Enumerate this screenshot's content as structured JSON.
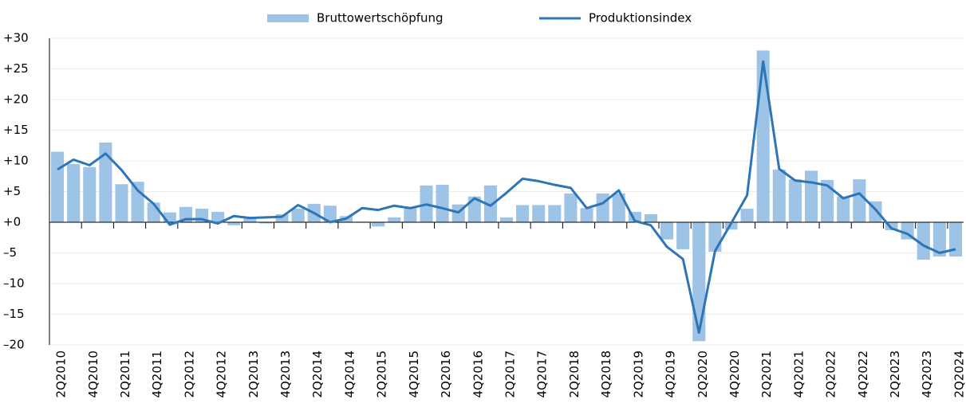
{
  "chart_data": {
    "type": "bar-line",
    "categories": [
      "2Q2010",
      null,
      "4Q2010",
      null,
      "2Q2011",
      null,
      "4Q2011",
      null,
      "2Q2012",
      null,
      "4Q2012",
      null,
      "2Q2013",
      null,
      "4Q2013",
      null,
      "2Q2014",
      null,
      "4Q2014",
      null,
      "2Q2015",
      null,
      "4Q2015",
      null,
      "2Q2016",
      null,
      "4Q2016",
      null,
      "2Q2017",
      null,
      "4Q2017",
      null,
      "2Q2018",
      null,
      "4Q2018",
      null,
      "2Q2019",
      null,
      "4Q2019",
      null,
      "2Q2020",
      null,
      "4Q2020",
      null,
      "2Q2021",
      null,
      "4Q2021",
      null,
      "2Q2022",
      null,
      "4Q2022",
      null,
      "2Q2023",
      null,
      "4Q2023",
      null,
      "2Q2024"
    ],
    "series": [
      {
        "name": "Bruttowertschöpfung",
        "type": "bar",
        "color": "#9dc3e6",
        "values": [
          11.5,
          9.5,
          9,
          13,
          6.2,
          6.6,
          3.2,
          1.6,
          2.5,
          2.2,
          1.7,
          -0.5,
          0.7,
          -0.2,
          1.3,
          2.2,
          3,
          2.7,
          1,
          0.1,
          -0.7,
          0.8,
          2.4,
          6,
          6.1,
          2.9,
          4.2,
          6,
          0.8,
          2.8,
          2.8,
          2.8,
          4.7,
          2.3,
          4.7,
          4.7,
          1.7,
          1.3,
          -2.8,
          -4.4,
          -19.4,
          -4.8,
          -1.2,
          2.2,
          28,
          8.6,
          7,
          8.4,
          6.9,
          4.2,
          7,
          3.4,
          -1.3,
          -2.8,
          -6.1,
          -5.6,
          -5.6
        ]
      },
      {
        "name": "Produktionsindex",
        "type": "line",
        "color": "#2e75b6",
        "values": [
          8.6,
          10.2,
          9.3,
          11.2,
          8.5,
          5.2,
          3,
          -0.4,
          0.5,
          0.5,
          -0.2,
          1,
          0.7,
          0.8,
          0.9,
          2.8,
          1.5,
          0,
          0.6,
          2.3,
          2,
          2.7,
          2.3,
          2.9,
          2.3,
          1.6,
          3.9,
          2.7,
          4.8,
          7.1,
          6.7,
          6.1,
          5.6,
          2.3,
          3.1,
          5.2,
          0.2,
          -0.5,
          -4,
          -6,
          -18,
          -4.7,
          -0.2,
          4.4,
          26.2,
          8.7,
          6.8,
          6.5,
          6,
          3.9,
          4.7,
          2.1,
          -1,
          -1.9,
          -3.8,
          -5,
          -4.4
        ]
      }
    ],
    "ylim": [
      -20,
      30
    ],
    "yticks": [
      {
        "value": -20,
        "label": "–20"
      },
      {
        "value": -15,
        "label": "–15"
      },
      {
        "value": -10,
        "label": "–10"
      },
      {
        "value": -5,
        "label": "–5"
      },
      {
        "value": 0,
        "label": "+0"
      },
      {
        "value": 5,
        "label": "+5"
      },
      {
        "value": 10,
        "label": "+10"
      },
      {
        "value": 15,
        "label": "+15"
      },
      {
        "value": 20,
        "label": "+20"
      },
      {
        "value": 25,
        "label": "+25"
      },
      {
        "value": 30,
        "label": "+30"
      }
    ],
    "grid": true,
    "legend": "top"
  }
}
